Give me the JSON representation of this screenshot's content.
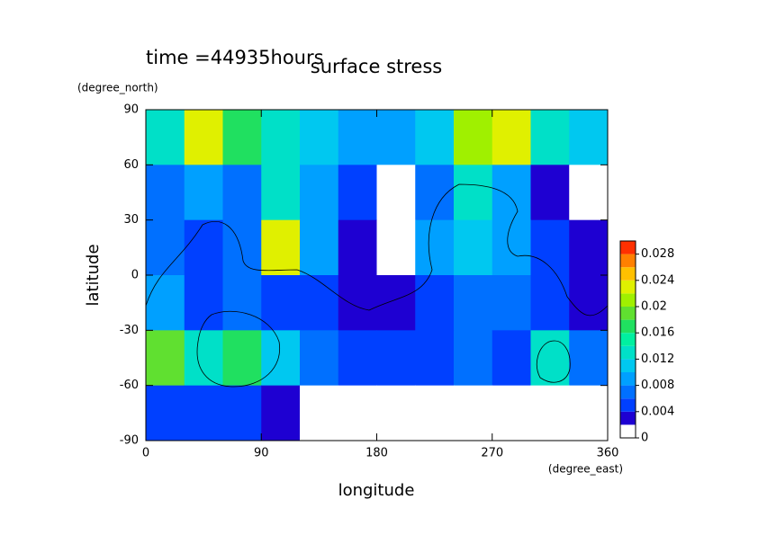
{
  "chart_data": {
    "type": "contour",
    "title": "surface stress",
    "subtitle": "time =44935hours",
    "xlabel": "longitude",
    "xunit": "(degree_east)",
    "ylabel": "latitude",
    "yunit": "(degree_north)",
    "x": [
      15,
      45,
      75,
      105,
      135,
      165,
      195,
      225,
      255,
      285,
      315,
      345
    ],
    "y": [
      75,
      45,
      15,
      -15,
      -45,
      -75
    ],
    "z": [
      [
        0.012,
        0.022,
        0.016,
        0.012,
        0.01,
        0.008,
        0.008,
        0.01,
        0.02,
        0.022,
        0.012,
        0.01
      ],
      [
        0.006,
        0.008,
        0.006,
        0.012,
        0.008,
        0.004,
        0.0,
        0.006,
        0.012,
        0.008,
        0.002,
        0.0
      ],
      [
        0.006,
        0.004,
        0.006,
        0.022,
        0.008,
        0.002,
        0.0,
        0.008,
        0.01,
        0.008,
        0.004,
        0.002
      ],
      [
        0.008,
        0.004,
        0.006,
        0.004,
        0.004,
        0.002,
        0.002,
        0.004,
        0.006,
        0.006,
        0.004,
        0.002
      ],
      [
        0.018,
        0.012,
        0.016,
        0.01,
        0.006,
        0.004,
        0.004,
        0.004,
        0.006,
        0.004,
        0.012,
        0.006
      ],
      [
        0.004,
        0.004,
        0.004,
        0.002,
        0.0,
        0.0,
        0.0,
        0.0,
        0.0,
        0.0,
        0.0,
        0.0
      ]
    ],
    "xlim": [
      0,
      360
    ],
    "xticks": [
      0,
      90,
      180,
      270,
      360
    ],
    "ylim": [
      -90,
      90
    ],
    "yticks": [
      -90,
      -60,
      -30,
      0,
      30,
      60,
      90
    ],
    "levels": [
      0,
      0.002,
      0.004,
      0.006,
      0.008,
      0.01,
      0.012,
      0.014,
      0.016,
      0.018,
      0.02,
      0.022,
      0.024,
      0.026,
      0.028,
      0.03
    ],
    "colors": [
      "#ffffff",
      "#1e00d2",
      "#0040ff",
      "#0070ff",
      "#00a0ff",
      "#00c8f0",
      "#00e0c8",
      "#00f0a0",
      "#20e060",
      "#60e030",
      "#a0f000",
      "#e0f000",
      "#ffc000",
      "#ff8000",
      "#ff3000"
    ],
    "cticks": [
      0,
      0.004,
      0.008,
      0.012,
      0.016,
      0.02,
      0.024,
      0.028
    ]
  }
}
